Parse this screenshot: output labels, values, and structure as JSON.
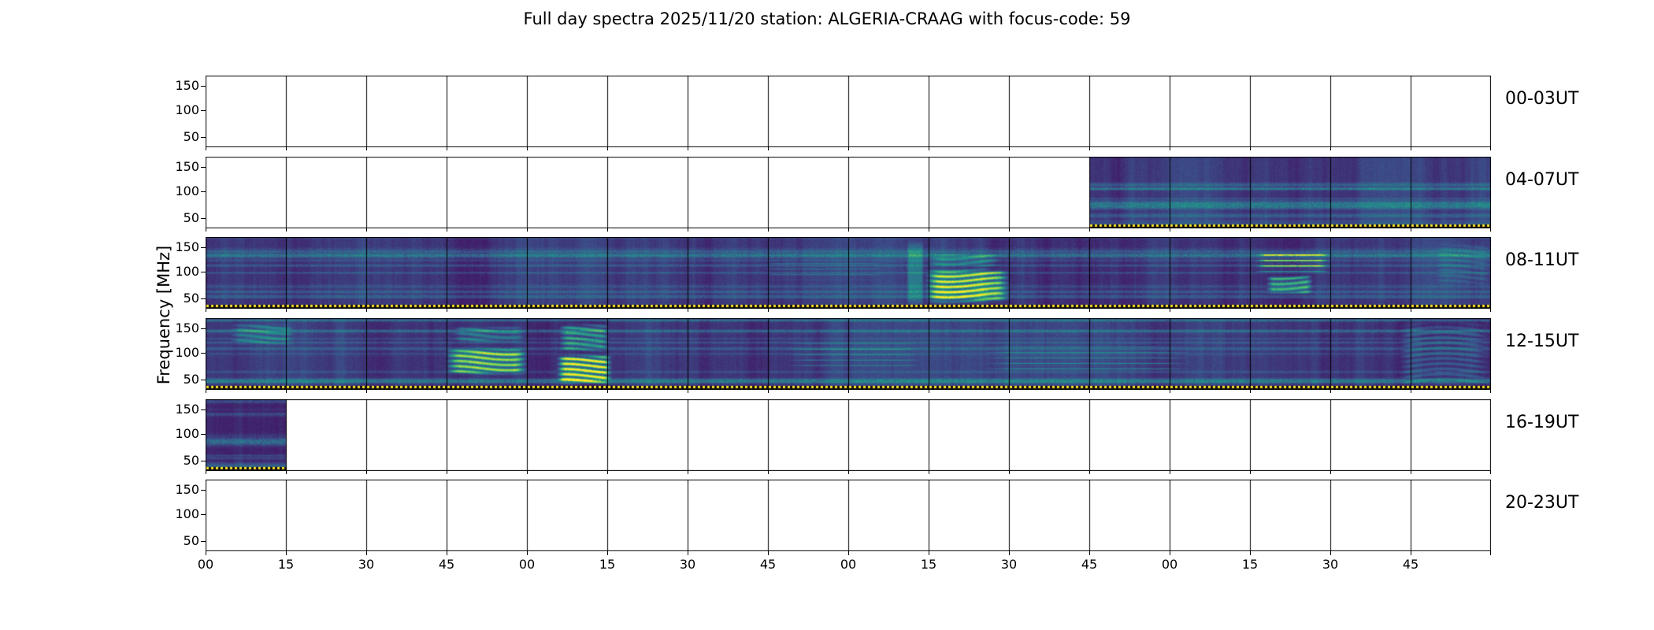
{
  "title": "Full day spectra 2025/11/20 station: ALGERIA-CRAAG with focus-code: 59",
  "ylabel": "Frequency [MHz]",
  "yticks": [
    "150",
    "100",
    "50"
  ],
  "xticks": [
    "00",
    "15",
    "30",
    "45",
    "00",
    "15",
    "30",
    "45",
    "00",
    "15",
    "30",
    "45",
    "00",
    "15",
    "30",
    "45"
  ],
  "rows": [
    {
      "label": "00-03UT",
      "coverage": [],
      "features": []
    },
    {
      "label": "04-07UT",
      "coverage": [
        [
          0.6875,
          1.0
        ]
      ],
      "features": []
    },
    {
      "label": "08-11UT",
      "coverage": [
        [
          0.0,
          1.0
        ]
      ],
      "features": [
        {
          "x0": 0.545,
          "x1": 0.559,
          "y0": 0.0,
          "y1": 1.0,
          "amp": 0.28,
          "type": "column"
        },
        {
          "x0": 0.558,
          "x1": 0.627,
          "y0": 0.42,
          "y1": 0.93,
          "amp": 0.85,
          "type": "bands"
        },
        {
          "x0": 0.56,
          "x1": 0.62,
          "y0": 0.22,
          "y1": 0.42,
          "amp": 0.3,
          "type": "bands"
        },
        {
          "x0": 0.815,
          "x1": 0.876,
          "y0": 0.18,
          "y1": 0.5,
          "amp": 0.75,
          "type": "lines"
        },
        {
          "x0": 0.824,
          "x1": 0.862,
          "y0": 0.52,
          "y1": 0.8,
          "amp": 0.6,
          "type": "bands"
        },
        {
          "x0": 0.43,
          "x1": 0.53,
          "y0": 0.28,
          "y1": 0.62,
          "amp": 0.16,
          "type": "lines"
        },
        {
          "x0": 0.955,
          "x1": 1.0,
          "y0": 0.05,
          "y1": 0.7,
          "amp": 0.14,
          "type": "bands"
        }
      ]
    },
    {
      "label": "12-15UT",
      "coverage": [
        [
          0.0,
          1.0
        ]
      ],
      "features": [
        {
          "x0": 0.018,
          "x1": 0.07,
          "y0": 0.06,
          "y1": 0.38,
          "amp": 0.3,
          "type": "bands"
        },
        {
          "x0": 0.185,
          "x1": 0.252,
          "y0": 0.4,
          "y1": 0.8,
          "amp": 0.8,
          "type": "bands"
        },
        {
          "x0": 0.19,
          "x1": 0.25,
          "y0": 0.1,
          "y1": 0.35,
          "amp": 0.28,
          "type": "bands"
        },
        {
          "x0": 0.272,
          "x1": 0.317,
          "y0": 0.48,
          "y1": 0.93,
          "amp": 1.05,
          "type": "bands"
        },
        {
          "x0": 0.274,
          "x1": 0.315,
          "y0": 0.05,
          "y1": 0.48,
          "amp": 0.5,
          "type": "bands"
        },
        {
          "x0": 0.45,
          "x1": 0.56,
          "y0": 0.3,
          "y1": 0.72,
          "amp": 0.18,
          "type": "lines"
        },
        {
          "x0": 0.6,
          "x1": 0.77,
          "y0": 0.35,
          "y1": 0.78,
          "amp": 0.22,
          "type": "lines"
        },
        {
          "x0": 0.925,
          "x1": 1.0,
          "y0": 0.0,
          "y1": 1.0,
          "amp": 0.2,
          "type": "bands"
        }
      ]
    },
    {
      "label": "16-19UT",
      "coverage": [
        [
          0.0,
          0.0625
        ]
      ],
      "features": []
    },
    {
      "label": "20-23UT",
      "coverage": [],
      "features": []
    }
  ],
  "chart_data": {
    "type": "heatmap",
    "subtype": "solar radio spectrogram, full-day overview (e-Callisto style)",
    "title": "Full day spectra 2025/11/20 station: ALGERIA-CRAAG with focus-code: 59",
    "station": "ALGERIA-CRAAG",
    "date": "2025/11/20",
    "focus_code": "59",
    "colormap": "viridis",
    "ylabel": "Frequency [MHz]",
    "y_ticks_mhz": [
      150,
      100,
      50
    ],
    "y_range_mhz": [
      45,
      175
    ],
    "x_axis": "minutes within each 4-hour row, 15-minute file segments",
    "x_tick_labels_per_hour": [
      "00",
      "15",
      "30",
      "45"
    ],
    "row_span_hours": 4,
    "segments_per_row": 16,
    "rows": [
      {
        "label": "00-03UT",
        "data_coverage_ut": [],
        "note": "no data (blank panel)"
      },
      {
        "label": "04-07UT",
        "data_coverage_ut": [
          [
            "06:45",
            "08:00"
          ]
        ],
        "note": "quiet spectrum with horizontal interference bands, yellow dotted baseline"
      },
      {
        "label": "08-11UT",
        "data_coverage_ut": [
          [
            "08:00",
            "12:00"
          ]
        ],
        "bursts": [
          {
            "time_ut": "10:15-10:30",
            "freq_mhz": [
              40,
              105
            ],
            "desc": "bright green emission blob / radio burst"
          },
          {
            "time_ut": "11:15-11:30",
            "freq_mhz": [
              55,
              130
            ],
            "desc": "bright banded emission"
          }
        ]
      },
      {
        "label": "12-15UT",
        "data_coverage_ut": [
          [
            "12:00",
            "16:00"
          ]
        ],
        "bursts": [
          {
            "time_ut": "12:45-13:00",
            "freq_mhz": [
              55,
              110
            ],
            "desc": "bright wavy emission bands"
          },
          {
            "time_ut": "13:05-13:15",
            "freq_mhz": [
              45,
              165
            ],
            "desc": "intense broadband burst, brightest feature of the day"
          }
        ]
      },
      {
        "label": "16-19UT",
        "data_coverage_ut": [
          [
            "16:00",
            "16:15"
          ]
        ],
        "note": "single 15-min segment of data"
      },
      {
        "label": "20-23UT",
        "data_coverage_ut": [],
        "note": "no data (blank panel)"
      }
    ]
  }
}
